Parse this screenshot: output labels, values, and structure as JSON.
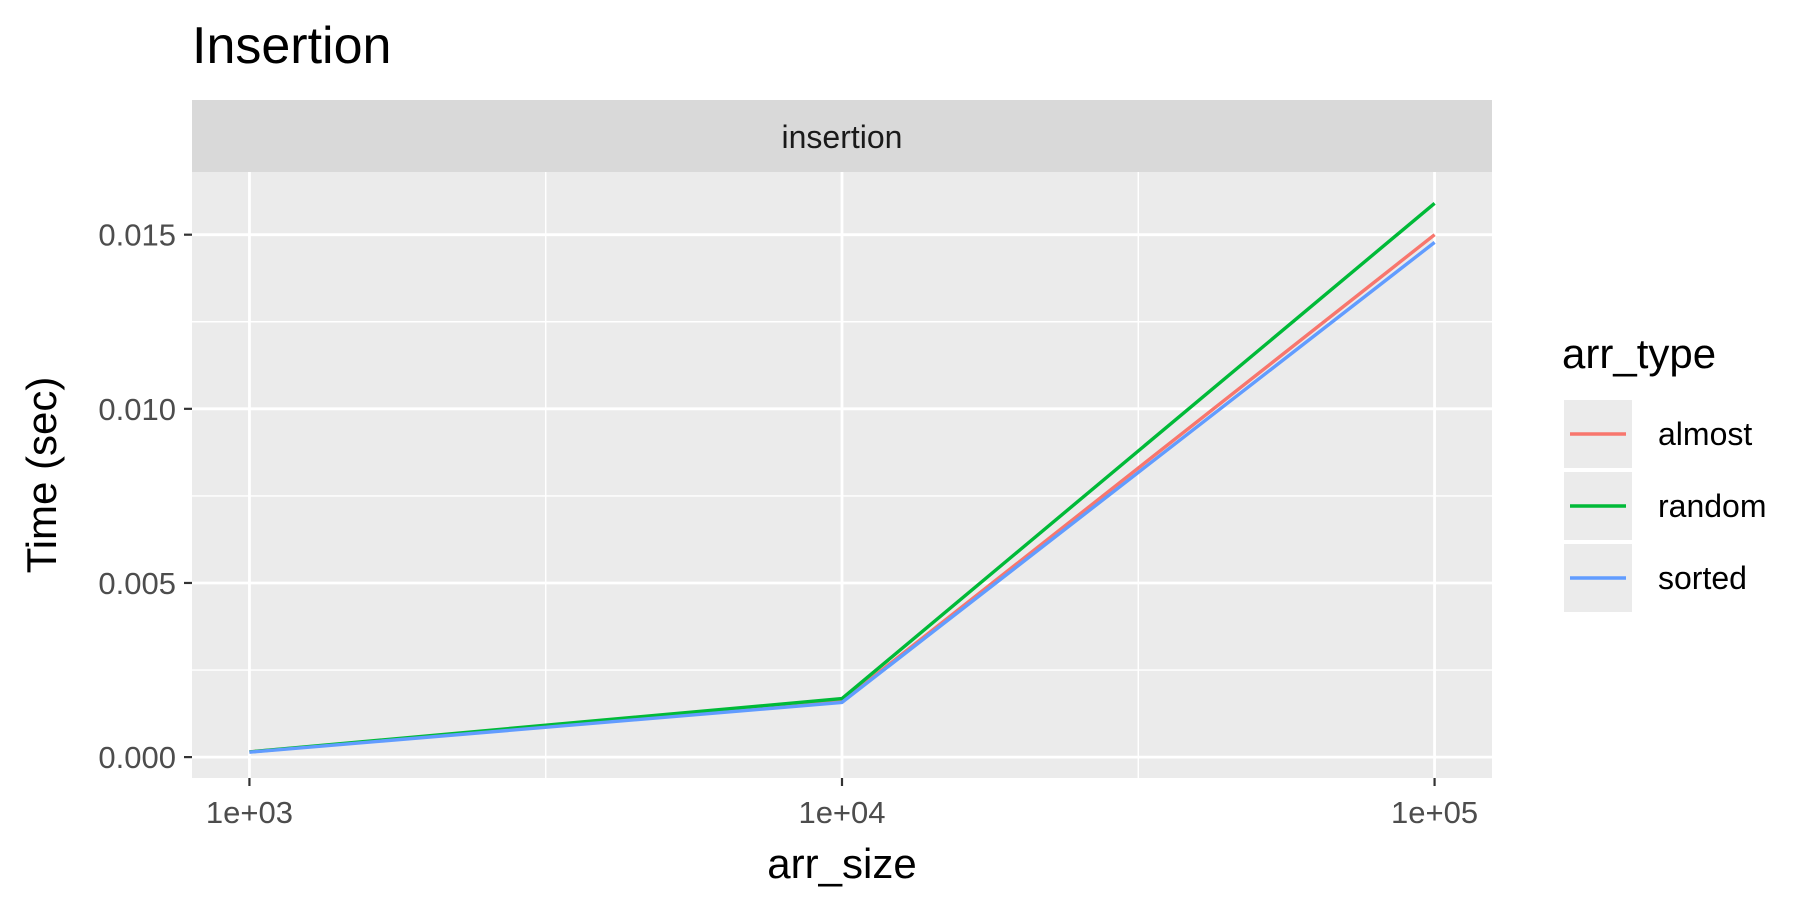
{
  "chart_data": {
    "type": "line",
    "title": "Insertion",
    "facet_label": "insertion",
    "xlabel": "arr_size",
    "ylabel": "Time (sec)",
    "x_scale": "log10",
    "x": [
      1000,
      10000,
      100000
    ],
    "x_tick_labels": [
      "1e+03",
      "1e+04",
      "1e+05"
    ],
    "xlim": [
      800,
      125000
    ],
    "y_ticks": [
      0.0,
      0.005,
      0.01,
      0.015
    ],
    "y_tick_labels": [
      "0.000",
      "0.005",
      "0.010",
      "0.015"
    ],
    "ylim": [
      -0.0006,
      0.0168
    ],
    "grid": true,
    "legend": {
      "title": "arr_type",
      "position": "right"
    },
    "series": [
      {
        "name": "almost",
        "color": "#F8766D",
        "values": [
          0.00015,
          0.0016,
          0.015
        ]
      },
      {
        "name": "random",
        "color": "#00BA38",
        "values": [
          0.00015,
          0.00168,
          0.0159
        ]
      },
      {
        "name": "sorted",
        "color": "#619CFF",
        "values": [
          0.00014,
          0.00157,
          0.01478
        ]
      }
    ]
  }
}
